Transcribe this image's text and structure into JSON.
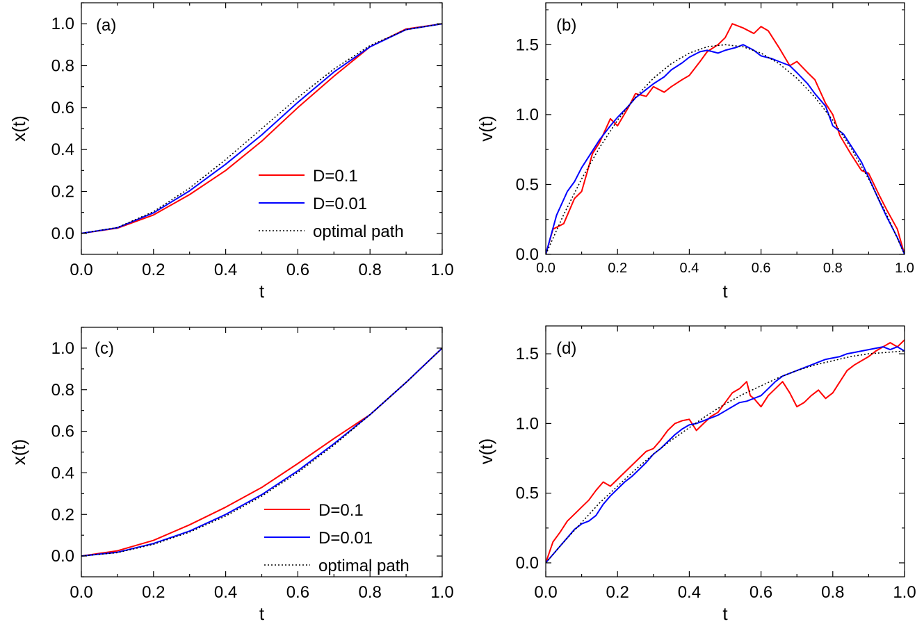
{
  "colors": {
    "D_0.1": "#ff0000",
    "D_0.01": "#0000ff",
    "optimal": "#000000"
  },
  "chart_data": [
    {
      "type": "line",
      "panel_label": "(a)",
      "xlabel": "t",
      "ylabel": "x(t)",
      "xlim": [
        0.0,
        1.0
      ],
      "ylim": [
        -0.1,
        1.1
      ],
      "xticks": [
        "0.0",
        "0.2",
        "0.4",
        "0.6",
        "0.8",
        "1.0"
      ],
      "yticks": [
        "0.0",
        "0.2",
        "0.4",
        "0.6",
        "0.8",
        "1.0"
      ],
      "legend": {
        "placement": "lower-right",
        "entries": [
          "D=0.1",
          "D=0.01",
          "optimal path"
        ]
      },
      "series": [
        {
          "name": "D=0.1",
          "color": "#ff0000",
          "style": "solid",
          "x": [
            0,
            0.1,
            0.2,
            0.3,
            0.4,
            0.5,
            0.6,
            0.7,
            0.8,
            0.9,
            1.0
          ],
          "y": [
            0,
            0.025,
            0.088,
            0.185,
            0.3,
            0.44,
            0.6,
            0.75,
            0.89,
            0.975,
            1.0
          ]
        },
        {
          "name": "D=0.01",
          "color": "#0000ff",
          "style": "solid",
          "x": [
            0,
            0.1,
            0.2,
            0.3,
            0.4,
            0.5,
            0.6,
            0.7,
            0.8,
            0.9,
            1.0
          ],
          "y": [
            0,
            0.027,
            0.098,
            0.203,
            0.33,
            0.47,
            0.625,
            0.77,
            0.89,
            0.972,
            1.0
          ]
        },
        {
          "name": "optimal path",
          "color": "#000000",
          "style": "dotted",
          "x": [
            0,
            0.1,
            0.2,
            0.3,
            0.4,
            0.5,
            0.6,
            0.7,
            0.8,
            0.9,
            1.0
          ],
          "y": [
            0,
            0.028,
            0.104,
            0.216,
            0.352,
            0.5,
            0.648,
            0.784,
            0.896,
            0.972,
            1.0
          ]
        }
      ]
    },
    {
      "type": "line",
      "panel_label": "(b)",
      "xlabel": "t",
      "ylabel": "v(t)",
      "xlim": [
        0.0,
        1.0
      ],
      "ylim": [
        0.0,
        1.8
      ],
      "xticks": [
        "0.0",
        "0.2",
        "0.4",
        "0.6",
        "0.8",
        "1.0"
      ],
      "yticks": [
        "0.0",
        "0.5",
        "1.0",
        "1.5"
      ],
      "series": [
        {
          "name": "D=0.1",
          "color": "#ff0000",
          "style": "solid",
          "x": [
            0,
            0.02,
            0.05,
            0.08,
            0.1,
            0.13,
            0.15,
            0.18,
            0.2,
            0.23,
            0.25,
            0.28,
            0.3,
            0.33,
            0.35,
            0.38,
            0.4,
            0.43,
            0.45,
            0.48,
            0.5,
            0.52,
            0.55,
            0.58,
            0.6,
            0.62,
            0.65,
            0.68,
            0.7,
            0.73,
            0.75,
            0.78,
            0.8,
            0.82,
            0.85,
            0.88,
            0.9,
            0.93,
            0.95,
            0.98,
            1.0
          ],
          "y": [
            0,
            0.18,
            0.22,
            0.4,
            0.45,
            0.72,
            0.8,
            0.97,
            0.92,
            1.05,
            1.15,
            1.13,
            1.2,
            1.16,
            1.2,
            1.25,
            1.28,
            1.38,
            1.45,
            1.5,
            1.55,
            1.65,
            1.62,
            1.58,
            1.63,
            1.6,
            1.48,
            1.35,
            1.38,
            1.3,
            1.25,
            1.08,
            1.0,
            0.85,
            0.72,
            0.6,
            0.58,
            0.42,
            0.32,
            0.18,
            0.0
          ]
        },
        {
          "name": "D=0.01",
          "color": "#0000ff",
          "style": "solid",
          "x": [
            0,
            0.03,
            0.06,
            0.08,
            0.1,
            0.13,
            0.15,
            0.18,
            0.2,
            0.23,
            0.25,
            0.28,
            0.3,
            0.33,
            0.35,
            0.38,
            0.4,
            0.43,
            0.45,
            0.48,
            0.5,
            0.53,
            0.55,
            0.58,
            0.6,
            0.63,
            0.65,
            0.68,
            0.7,
            0.73,
            0.75,
            0.78,
            0.8,
            0.83,
            0.85,
            0.88,
            0.9,
            0.93,
            0.95,
            0.98,
            1.0
          ],
          "y": [
            0,
            0.28,
            0.45,
            0.52,
            0.62,
            0.74,
            0.82,
            0.92,
            0.98,
            1.06,
            1.12,
            1.18,
            1.22,
            1.27,
            1.32,
            1.37,
            1.41,
            1.45,
            1.46,
            1.44,
            1.46,
            1.48,
            1.5,
            1.46,
            1.42,
            1.4,
            1.38,
            1.35,
            1.3,
            1.22,
            1.15,
            1.06,
            0.92,
            0.86,
            0.78,
            0.66,
            0.55,
            0.38,
            0.27,
            0.12,
            0.0
          ]
        },
        {
          "name": "optimal path",
          "color": "#000000",
          "style": "dotted",
          "x": [
            0,
            0.05,
            0.1,
            0.15,
            0.2,
            0.25,
            0.3,
            0.35,
            0.4,
            0.45,
            0.5,
            0.55,
            0.6,
            0.65,
            0.7,
            0.75,
            0.8,
            0.85,
            0.9,
            0.95,
            1.0
          ],
          "y": [
            0,
            0.285,
            0.54,
            0.765,
            0.96,
            1.125,
            1.26,
            1.365,
            1.44,
            1.485,
            1.5,
            1.485,
            1.44,
            1.365,
            1.26,
            1.125,
            0.96,
            0.765,
            0.54,
            0.285,
            0.0
          ]
        }
      ]
    },
    {
      "type": "line",
      "panel_label": "(c)",
      "xlabel": "t",
      "ylabel": "x(t)",
      "xlim": [
        0.0,
        1.0
      ],
      "ylim": [
        -0.1,
        1.1
      ],
      "xticks": [
        "0.0",
        "0.2",
        "0.4",
        "0.6",
        "0.8",
        "1.0"
      ],
      "yticks": [
        "0.0",
        "0.2",
        "0.4",
        "0.6",
        "0.8",
        "1.0"
      ],
      "legend": {
        "placement": "lower-right",
        "entries": [
          "D=0.1",
          "D=0.01",
          "optimal path"
        ]
      },
      "series": [
        {
          "name": "D=0.1",
          "color": "#ff0000",
          "style": "solid",
          "x": [
            0,
            0.1,
            0.2,
            0.3,
            0.4,
            0.5,
            0.6,
            0.7,
            0.8,
            0.9,
            1.0
          ],
          "y": [
            0,
            0.025,
            0.075,
            0.15,
            0.235,
            0.33,
            0.445,
            0.565,
            0.68,
            0.835,
            1.0
          ]
        },
        {
          "name": "D=0.01",
          "color": "#0000ff",
          "style": "solid",
          "x": [
            0,
            0.1,
            0.2,
            0.3,
            0.4,
            0.5,
            0.6,
            0.7,
            0.8,
            0.9,
            1.0
          ],
          "y": [
            0,
            0.018,
            0.06,
            0.12,
            0.2,
            0.295,
            0.41,
            0.54,
            0.68,
            0.835,
            1.0
          ]
        },
        {
          "name": "optimal path",
          "color": "#000000",
          "style": "dotted",
          "x": [
            0,
            0.1,
            0.2,
            0.3,
            0.4,
            0.5,
            0.6,
            0.7,
            0.8,
            0.9,
            1.0
          ],
          "y": [
            0,
            0.016,
            0.056,
            0.115,
            0.192,
            0.288,
            0.402,
            0.533,
            0.68,
            0.835,
            1.0
          ]
        }
      ]
    },
    {
      "type": "line",
      "panel_label": "(d)",
      "xlabel": "t",
      "ylabel": "v(t)",
      "xlim": [
        0.0,
        1.0
      ],
      "ylim": [
        -0.1,
        1.7
      ],
      "xticks": [
        "0.0",
        "0.2",
        "0.4",
        "0.6",
        "0.8",
        "1.0"
      ],
      "yticks": [
        "0.0",
        "0.5",
        "1.0",
        "1.5"
      ],
      "series": [
        {
          "name": "D=0.1",
          "color": "#ff0000",
          "style": "solid",
          "x": [
            0,
            0.02,
            0.04,
            0.06,
            0.08,
            0.1,
            0.12,
            0.14,
            0.16,
            0.18,
            0.2,
            0.22,
            0.24,
            0.26,
            0.28,
            0.3,
            0.32,
            0.34,
            0.36,
            0.38,
            0.4,
            0.42,
            0.44,
            0.46,
            0.48,
            0.5,
            0.52,
            0.54,
            0.56,
            0.57,
            0.58,
            0.6,
            0.62,
            0.64,
            0.66,
            0.68,
            0.7,
            0.72,
            0.74,
            0.76,
            0.78,
            0.8,
            0.82,
            0.84,
            0.86,
            0.88,
            0.9,
            0.92,
            0.94,
            0.96,
            0.98,
            1.0
          ],
          "y": [
            0,
            0.15,
            0.22,
            0.3,
            0.35,
            0.4,
            0.45,
            0.52,
            0.58,
            0.55,
            0.6,
            0.65,
            0.7,
            0.75,
            0.8,
            0.82,
            0.88,
            0.95,
            1.0,
            1.02,
            1.03,
            0.95,
            1.0,
            1.05,
            1.08,
            1.15,
            1.22,
            1.25,
            1.3,
            1.2,
            1.18,
            1.12,
            1.2,
            1.25,
            1.3,
            1.22,
            1.12,
            1.15,
            1.2,
            1.24,
            1.18,
            1.22,
            1.3,
            1.38,
            1.42,
            1.45,
            1.48,
            1.52,
            1.55,
            1.58,
            1.55,
            1.6
          ]
        },
        {
          "name": "D=0.01",
          "color": "#0000ff",
          "style": "solid",
          "x": [
            0,
            0.02,
            0.04,
            0.06,
            0.08,
            0.1,
            0.12,
            0.14,
            0.16,
            0.18,
            0.2,
            0.22,
            0.24,
            0.26,
            0.28,
            0.3,
            0.32,
            0.34,
            0.36,
            0.38,
            0.4,
            0.42,
            0.44,
            0.46,
            0.48,
            0.5,
            0.52,
            0.54,
            0.56,
            0.58,
            0.6,
            0.62,
            0.64,
            0.66,
            0.68,
            0.7,
            0.72,
            0.74,
            0.76,
            0.78,
            0.8,
            0.82,
            0.84,
            0.86,
            0.88,
            0.9,
            0.92,
            0.94,
            0.96,
            0.98,
            1.0
          ],
          "y": [
            0,
            0.06,
            0.12,
            0.18,
            0.24,
            0.28,
            0.3,
            0.34,
            0.42,
            0.48,
            0.53,
            0.58,
            0.62,
            0.67,
            0.72,
            0.78,
            0.82,
            0.87,
            0.92,
            0.96,
            0.99,
            1.0,
            1.02,
            1.04,
            1.06,
            1.09,
            1.12,
            1.15,
            1.16,
            1.18,
            1.2,
            1.25,
            1.3,
            1.34,
            1.36,
            1.38,
            1.4,
            1.42,
            1.44,
            1.46,
            1.47,
            1.48,
            1.5,
            1.51,
            1.52,
            1.53,
            1.54,
            1.55,
            1.53,
            1.55,
            1.52
          ]
        },
        {
          "name": "optimal path",
          "color": "#000000",
          "style": "dotted",
          "x": [
            0,
            0.05,
            0.1,
            0.15,
            0.2,
            0.25,
            0.3,
            0.35,
            0.4,
            0.45,
            0.5,
            0.55,
            0.6,
            0.65,
            0.7,
            0.75,
            0.8,
            0.85,
            0.9,
            0.95,
            1.0
          ],
          "y": [
            0,
            0.15,
            0.29,
            0.43,
            0.55,
            0.67,
            0.78,
            0.88,
            0.97,
            1.06,
            1.14,
            1.21,
            1.27,
            1.33,
            1.38,
            1.42,
            1.45,
            1.48,
            1.5,
            1.51,
            1.52
          ]
        }
      ]
    }
  ]
}
